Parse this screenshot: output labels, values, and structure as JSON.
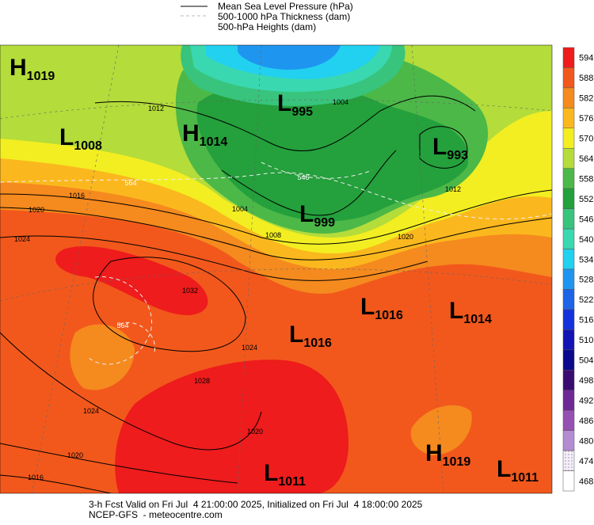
{
  "legend": [
    "Mean Sea Level Pressure (hPa)",
    "500-1000 hPa Thickness (dam)",
    "500-hPa Heights (dam)"
  ],
  "colorbar": {
    "levels": [
      594,
      588,
      582,
      576,
      570,
      564,
      558,
      552,
      546,
      540,
      534,
      528,
      522,
      516,
      510,
      504,
      498,
      492,
      486,
      480,
      474,
      468
    ],
    "colors": [
      "#ee1c1c",
      "#f2581c",
      "#f58a1e",
      "#fbb81e",
      "#f2ee22",
      "#b4dc3a",
      "#4cb848",
      "#24a03c",
      "#38c47c",
      "#3ad8b0",
      "#22d0f0",
      "#1e96f0",
      "#1e64e6",
      "#1432dc",
      "#1414b4",
      "#0a0a8c",
      "#3a0c70",
      "#6e2896",
      "#9650b4",
      "#b48cd2",
      "#dcc8e6",
      "#ffffff"
    ]
  },
  "centers": [
    {
      "kind": "H",
      "value": 1019
    },
    {
      "kind": "L",
      "value": 1008
    },
    {
      "kind": "H",
      "value": 1014
    },
    {
      "kind": "L",
      "value": 995
    },
    {
      "kind": "L",
      "value": 999
    },
    {
      "kind": "L",
      "value": 993
    },
    {
      "kind": "L",
      "value": 1016
    },
    {
      "kind": "L",
      "value": 1014
    },
    {
      "kind": "L",
      "value": 1016
    },
    {
      "kind": "H",
      "value": 1019
    },
    {
      "kind": "L",
      "value": 1011
    },
    {
      "kind": "L",
      "value": 1011
    }
  ],
  "contour_labels": [
    1012,
    1016,
    1020,
    1024,
    1004,
    1008,
    1032,
    1024,
    1028,
    1020,
    1024,
    1020,
    1016,
    1012,
    1004,
    1020,
    564,
    546,
    564
  ],
  "footer": [
    "3-h Fcst Valid on Fri Jul  4 21:00:00 2025, Initialized on Fri Jul  4 18:00:00 2025",
    "NCEP-GFS  - meteocentre.com"
  ]
}
